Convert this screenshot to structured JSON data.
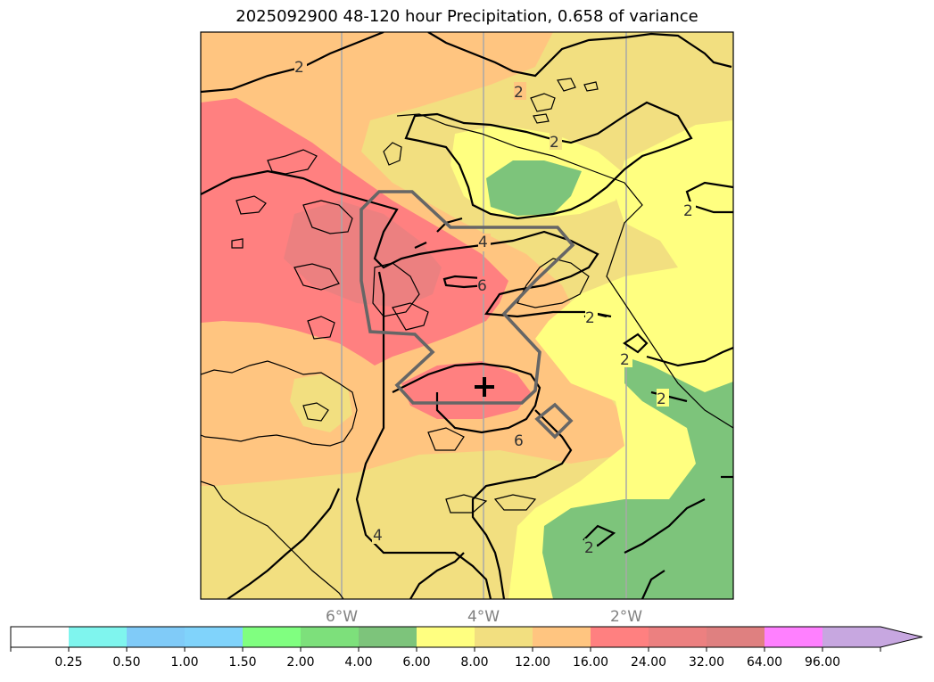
{
  "title": "2025092900 48-120 hour Precipitation, 0.658 of variance",
  "map": {
    "longitude_labels": [
      "6°W",
      "4°W",
      "2°W"
    ],
    "contour_labels": [
      "2",
      "2",
      "2",
      "2",
      "4",
      "6",
      "2",
      "2",
      "2",
      "6",
      "4",
      "2"
    ],
    "marker": "plus-marker"
  },
  "colorbar": {
    "ticks": [
      "0.25",
      "0.50",
      "1.00",
      "1.50",
      "2.00",
      "4.00",
      "6.00",
      "8.00",
      "12.00",
      "16.00",
      "24.00",
      "32.00",
      "64.00",
      "96.00"
    ],
    "colors": [
      "#ffffff",
      "#7ff5ee",
      "#80cbf8",
      "#80d3fb",
      "#80ff80",
      "#7de07b",
      "#7dc47b",
      "#ffff80",
      "#f2df80",
      "#ffc580",
      "#ff8080",
      "#ec8080",
      "#df8080",
      "#ff80ff",
      "#c7a7e0"
    ]
  }
}
